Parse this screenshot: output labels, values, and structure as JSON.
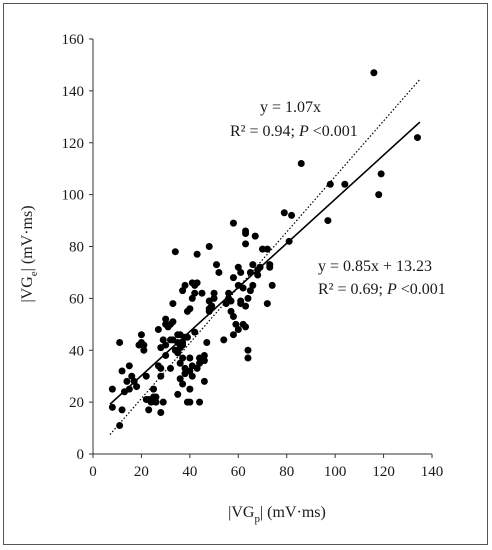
{
  "chart_data": {
    "type": "scatter",
    "title": "",
    "xlabel": {
      "pre": "|VG",
      "sub": "p",
      "post": "|  (mV·ms)"
    },
    "ylabel": {
      "pre": "|VG",
      "sub": "e",
      "post": "|  (mV·ms)"
    },
    "xlim": [
      0,
      140
    ],
    "ylim": [
      0,
      160
    ],
    "xticks": [
      0,
      20,
      40,
      60,
      80,
      100,
      120,
      140
    ],
    "yticks": [
      0,
      20,
      40,
      60,
      80,
      100,
      120,
      140,
      160
    ],
    "grid": false,
    "legend": "none",
    "marker_color": "#000000",
    "points": [
      [
        8,
        18
      ],
      [
        8,
        25
      ],
      [
        11,
        11
      ],
      [
        12,
        17
      ],
      [
        11,
        43
      ],
      [
        12,
        32
      ],
      [
        13,
        24
      ],
      [
        14,
        28
      ],
      [
        15,
        25
      ],
      [
        15,
        34
      ],
      [
        16,
        30
      ],
      [
        17,
        28
      ],
      [
        18,
        26
      ],
      [
        19,
        42
      ],
      [
        20,
        43
      ],
      [
        20,
        46
      ],
      [
        21,
        42
      ],
      [
        21,
        40
      ],
      [
        22,
        21
      ],
      [
        22,
        30
      ],
      [
        23,
        17
      ],
      [
        23,
        21
      ],
      [
        24,
        20
      ],
      [
        25,
        25
      ],
      [
        25,
        22
      ],
      [
        26,
        20
      ],
      [
        26,
        22
      ],
      [
        27,
        34
      ],
      [
        27,
        48
      ],
      [
        28,
        30
      ],
      [
        28,
        33
      ],
      [
        28,
        41
      ],
      [
        28,
        16
      ],
      [
        29,
        20
      ],
      [
        29,
        44
      ],
      [
        30,
        42
      ],
      [
        30,
        50
      ],
      [
        30,
        52
      ],
      [
        30,
        38
      ],
      [
        31,
        49
      ],
      [
        32,
        50
      ],
      [
        32,
        33
      ],
      [
        32,
        44
      ],
      [
        33,
        58
      ],
      [
        33,
        44
      ],
      [
        33,
        51
      ],
      [
        34,
        78
      ],
      [
        34,
        40
      ],
      [
        35,
        46
      ],
      [
        35,
        39
      ],
      [
        35,
        43
      ],
      [
        35,
        23
      ],
      [
        36,
        35
      ],
      [
        36,
        41
      ],
      [
        36,
        46
      ],
      [
        36,
        29
      ],
      [
        37,
        27
      ],
      [
        37,
        37
      ],
      [
        37,
        43
      ],
      [
        37,
        42
      ],
      [
        37,
        63
      ],
      [
        38,
        65
      ],
      [
        38,
        33
      ],
      [
        38,
        45
      ],
      [
        38,
        31
      ],
      [
        39,
        20
      ],
      [
        39,
        55
      ],
      [
        39,
        45
      ],
      [
        40,
        56
      ],
      [
        40,
        37
      ],
      [
        40,
        32
      ],
      [
        40,
        20
      ],
      [
        40,
        25
      ],
      [
        41,
        66
      ],
      [
        41,
        30
      ],
      [
        41,
        34
      ],
      [
        41,
        60
      ],
      [
        42,
        47
      ],
      [
        42,
        62
      ],
      [
        42,
        65
      ],
      [
        43,
        77
      ],
      [
        43,
        66
      ],
      [
        43,
        33
      ],
      [
        44,
        35
      ],
      [
        44,
        37
      ],
      [
        44,
        20
      ],
      [
        45,
        62
      ],
      [
        46,
        28
      ],
      [
        46,
        36
      ],
      [
        46,
        38
      ],
      [
        47,
        43
      ],
      [
        48,
        80
      ],
      [
        48,
        55
      ],
      [
        48,
        59
      ],
      [
        48,
        56
      ],
      [
        49,
        57
      ],
      [
        49,
        57
      ],
      [
        50,
        62
      ],
      [
        50,
        60
      ],
      [
        51,
        73
      ],
      [
        52,
        70
      ],
      [
        54,
        44
      ],
      [
        55,
        58
      ],
      [
        56,
        60
      ],
      [
        56,
        62
      ],
      [
        57,
        59
      ],
      [
        57,
        55
      ],
      [
        58,
        89
      ],
      [
        58,
        68
      ],
      [
        58,
        53
      ],
      [
        58,
        46
      ],
      [
        59,
        50
      ],
      [
        60,
        65
      ],
      [
        60,
        72
      ],
      [
        60,
        48
      ],
      [
        61,
        70
      ],
      [
        61,
        58
      ],
      [
        61,
        59
      ],
      [
        62,
        64
      ],
      [
        62,
        50
      ],
      [
        63,
        81
      ],
      [
        63,
        86
      ],
      [
        63,
        85
      ],
      [
        63,
        49
      ],
      [
        63,
        57
      ],
      [
        64,
        37
      ],
      [
        64,
        40
      ],
      [
        64,
        60
      ],
      [
        65,
        70
      ],
      [
        65,
        63
      ],
      [
        66,
        65
      ],
      [
        66,
        73
      ],
      [
        67,
        84
      ],
      [
        68,
        69
      ],
      [
        68,
        71
      ],
      [
        69,
        72
      ],
      [
        70,
        79
      ],
      [
        72,
        58
      ],
      [
        72,
        79
      ],
      [
        73,
        72
      ],
      [
        73,
        73
      ],
      [
        74,
        65
      ],
      [
        79,
        93
      ],
      [
        81,
        82
      ],
      [
        82,
        92
      ],
      [
        86,
        112
      ],
      [
        97,
        90
      ],
      [
        98,
        104
      ],
      [
        104,
        104
      ],
      [
        116,
        147
      ],
      [
        118,
        100
      ],
      [
        119,
        108
      ],
      [
        134,
        122
      ]
    ],
    "lines": [
      {
        "slope": 0.85,
        "intercept": 13.23,
        "x_from": 7,
        "x_to": 135,
        "style": "solid",
        "color": "#000000"
      },
      {
        "slope": 1.07,
        "intercept": 0,
        "x_from": 7,
        "x_to": 135,
        "style": "dotted",
        "color": "#000000"
      }
    ],
    "annotations": {
      "identity_eq": "y = 1.07x",
      "identity_stats": {
        "r2": "R² = 0.94; ",
        "p_label": "P",
        "p_value": " <0.001"
      },
      "fit_eq": "y = 0.85x + 13.23",
      "fit_stats": {
        "r2": "R² = 0.69; ",
        "p_label": "P",
        "p_value": " <0.001"
      }
    }
  }
}
